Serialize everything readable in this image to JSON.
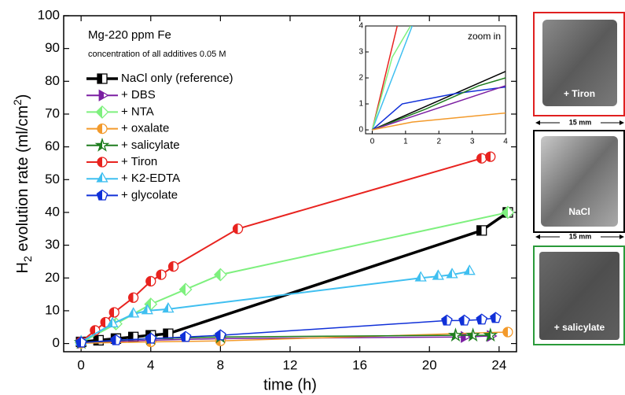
{
  "chart_data": [
    {
      "type": "line",
      "title": "Mg-220 ppm Fe",
      "subtitle": "concentration of all additives 0.05 M",
      "x_label": "time (h)",
      "y_label": {
        "main": "H",
        "sub": "2",
        "rest": " evolution rate (ml/cm",
        "sup": "2",
        "end": ")"
      },
      "xlim": [
        -1,
        25
      ],
      "xticks": [
        0,
        4,
        8,
        12,
        16,
        20,
        24
      ],
      "ylim": [
        -2.5,
        100
      ],
      "yticks": [
        0,
        10,
        20,
        30,
        40,
        50,
        60,
        70,
        80,
        90,
        100
      ],
      "series": [
        {
          "name": "NaCl only (reference)",
          "color": "#000000",
          "marker": "square",
          "width": 3.5,
          "x": [
            0,
            1,
            2,
            3,
            4,
            5,
            23,
            24.5
          ],
          "values": [
            0.5,
            1,
            1.5,
            2,
            2.5,
            3,
            34.5,
            40
          ]
        },
        {
          "name": "+ DBS",
          "color": "#7b1fa2",
          "marker": "tri-right",
          "width": 1.5,
          "x": [
            0,
            4,
            8,
            22,
            23.5
          ],
          "values": [
            0.2,
            1,
            1.5,
            2,
            2.3
          ]
        },
        {
          "name": "+ NTA",
          "color": "#7ef07e",
          "marker": "diamond",
          "width": 2,
          "x": [
            0,
            2,
            4,
            6,
            8,
            24.5
          ],
          "values": [
            0.3,
            6,
            12,
            16.5,
            21,
            40
          ]
        },
        {
          "name": "+ oxalate",
          "color": "#f39a2b",
          "marker": "circle",
          "width": 1.5,
          "x": [
            0,
            4,
            8,
            24.5
          ],
          "values": [
            0.1,
            0.5,
            0.8,
            3.5
          ]
        },
        {
          "name": "+ salicylate",
          "color": "#1e7d1e",
          "marker": "star",
          "width": 1.5,
          "x": [
            0,
            4,
            8,
            21.5,
            22.5,
            23.5
          ],
          "values": [
            0.3,
            1.5,
            2,
            2.5,
            2.5,
            2.5
          ]
        },
        {
          "name": "+ Tiron",
          "color": "#e8231f",
          "marker": "circle",
          "width": 2,
          "x": [
            0,
            0.8,
            1.4,
            1.9,
            3,
            4,
            4.6,
            5.3,
            9,
            23,
            23.5
          ],
          "values": [
            0.5,
            4,
            6.5,
            9.5,
            14,
            19,
            21,
            23.5,
            35,
            56.5,
            57
          ]
        },
        {
          "name": "+ K2-EDTA",
          "color": "#3fbff0",
          "marker": "triangle",
          "width": 2,
          "x": [
            0,
            1.8,
            3,
            3.8,
            5,
            19.5,
            20.5,
            21.3,
            22.3
          ],
          "values": [
            0.5,
            6,
            9,
            10,
            10.5,
            20,
            20.5,
            21,
            22
          ]
        },
        {
          "name": "+ glycolate",
          "color": "#1030d8",
          "marker": "pentagon",
          "width": 1.5,
          "x": [
            0,
            2,
            4,
            6,
            8,
            21,
            22,
            23,
            23.8
          ],
          "values": [
            0.3,
            1,
            1.5,
            2,
            2.5,
            7,
            7,
            7.3,
            7.8
          ]
        }
      ]
    },
    {
      "type": "line",
      "title": "zoom in",
      "xlim": [
        -0.2,
        4
      ],
      "xticks": [
        0,
        1,
        2,
        3,
        4
      ],
      "ylim": [
        -0.15,
        4
      ],
      "yticks": [
        0,
        1,
        2,
        3,
        4
      ],
      "series": [
        {
          "color": "#e8231f",
          "x": [
            0,
            0.75
          ],
          "values": [
            0,
            4
          ]
        },
        {
          "color": "#3fbff0",
          "x": [
            0,
            1.2
          ],
          "values": [
            0,
            4
          ]
        },
        {
          "color": "#7ef07e",
          "x": [
            0,
            0.6,
            1.15
          ],
          "values": [
            0,
            2.8,
            4
          ]
        },
        {
          "color": "#000000",
          "x": [
            0,
            4
          ],
          "values": [
            0,
            2.25
          ]
        },
        {
          "color": "#1030d8",
          "x": [
            0,
            0.9,
            2.5,
            4
          ],
          "values": [
            0,
            1,
            1.4,
            1.65
          ]
        },
        {
          "color": "#1e7d1e",
          "x": [
            0,
            1.6,
            3.2,
            4
          ],
          "values": [
            0,
            0.8,
            1.7,
            2
          ]
        },
        {
          "color": "#7b1fa2",
          "x": [
            0,
            4
          ],
          "values": [
            0,
            1.7
          ]
        },
        {
          "color": "#f39a2b",
          "x": [
            0,
            1.2,
            4
          ],
          "values": [
            0,
            0.3,
            0.65
          ]
        }
      ]
    }
  ],
  "panels": [
    {
      "caption": "+ Tiron"
    },
    {
      "caption": "NaCl"
    },
    {
      "caption": "+ salicylate"
    }
  ],
  "scale_labels": [
    "15 mm",
    "15 mm"
  ]
}
